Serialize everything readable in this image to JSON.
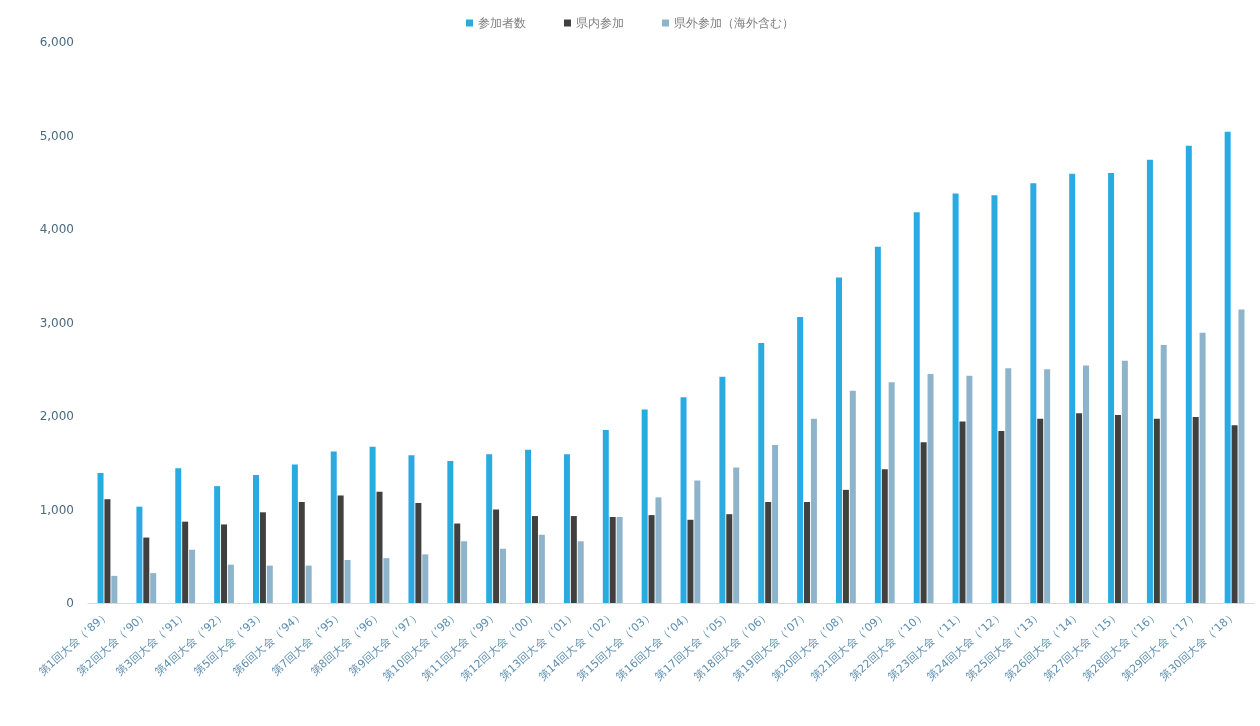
{
  "chart_data": {
    "type": "bar",
    "categories": [
      "第1回大会（’89）",
      "第2回大会（’90）",
      "第3回大会（’91）",
      "第4回大会（’92）",
      "第5回大会（’93）",
      "第6回大会（’94）",
      "第7回大会（’95）",
      "第8回大会（’96）",
      "第9回大会（’97）",
      "第10回大会（’98）",
      "第11回大会（’99）",
      "第12回大会（’00）",
      "第13回大会（’01）",
      "第14回大会（’02）",
      "第15回大会（’03）",
      "第16回大会（’04）",
      "第17回大会（’05）",
      "第18回大会（’06）",
      "第19回大会（’07）",
      "第20回大会（’08）",
      "第21回大会（’09）",
      "第22回大会（’10）",
      "第23回大会（’11）",
      "第24回大会（’12）",
      "第25回大会（’13）",
      "第26回大会（’14）",
      "第27回大会（’15）",
      "第28回大会（’16）",
      "第29回大会（’17）",
      "第30回大会（’18）"
    ],
    "series": [
      {
        "name": "参加者数",
        "color": "#29abe2",
        "values": [
          1390,
          1030,
          1440,
          1250,
          1370,
          1480,
          1620,
          1670,
          1580,
          1520,
          1590,
          1640,
          1590,
          1850,
          2070,
          2200,
          2420,
          2780,
          3060,
          3480,
          3810,
          4180,
          4380,
          4360,
          4490,
          4590,
          4600,
          4740,
          4890,
          5040
        ]
      },
      {
        "name": "県内参加",
        "color": "#404040",
        "values": [
          1110,
          700,
          870,
          840,
          970,
          1080,
          1150,
          1190,
          1070,
          850,
          1000,
          930,
          930,
          920,
          940,
          890,
          950,
          1080,
          1080,
          1210,
          1430,
          1720,
          1940,
          1840,
          1970,
          2030,
          2010,
          1970,
          1990,
          1900
        ]
      },
      {
        "name": "県外参加（海外含む）",
        "color": "#8eb4cb",
        "values": [
          290,
          320,
          570,
          410,
          400,
          400,
          460,
          480,
          520,
          660,
          580,
          730,
          660,
          920,
          1130,
          1310,
          1450,
          1690,
          1970,
          2270,
          2360,
          2450,
          2430,
          2510,
          2500,
          2540,
          2590,
          2760,
          2890,
          3140
        ]
      }
    ],
    "ylim": [
      0,
      6000
    ],
    "yticks": [
      0,
      {
        "value": 1000,
        "label": "1,000"
      },
      {
        "value": 2000,
        "label": "2,000"
      },
      {
        "value": 3000,
        "label": "3,000"
      },
      {
        "value": 4000,
        "label": "4,000"
      },
      {
        "value": 5000,
        "label": "5,000"
      },
      {
        "value": 6000,
        "label": "6,000"
      }
    ],
    "grid": false,
    "legend": "top"
  }
}
